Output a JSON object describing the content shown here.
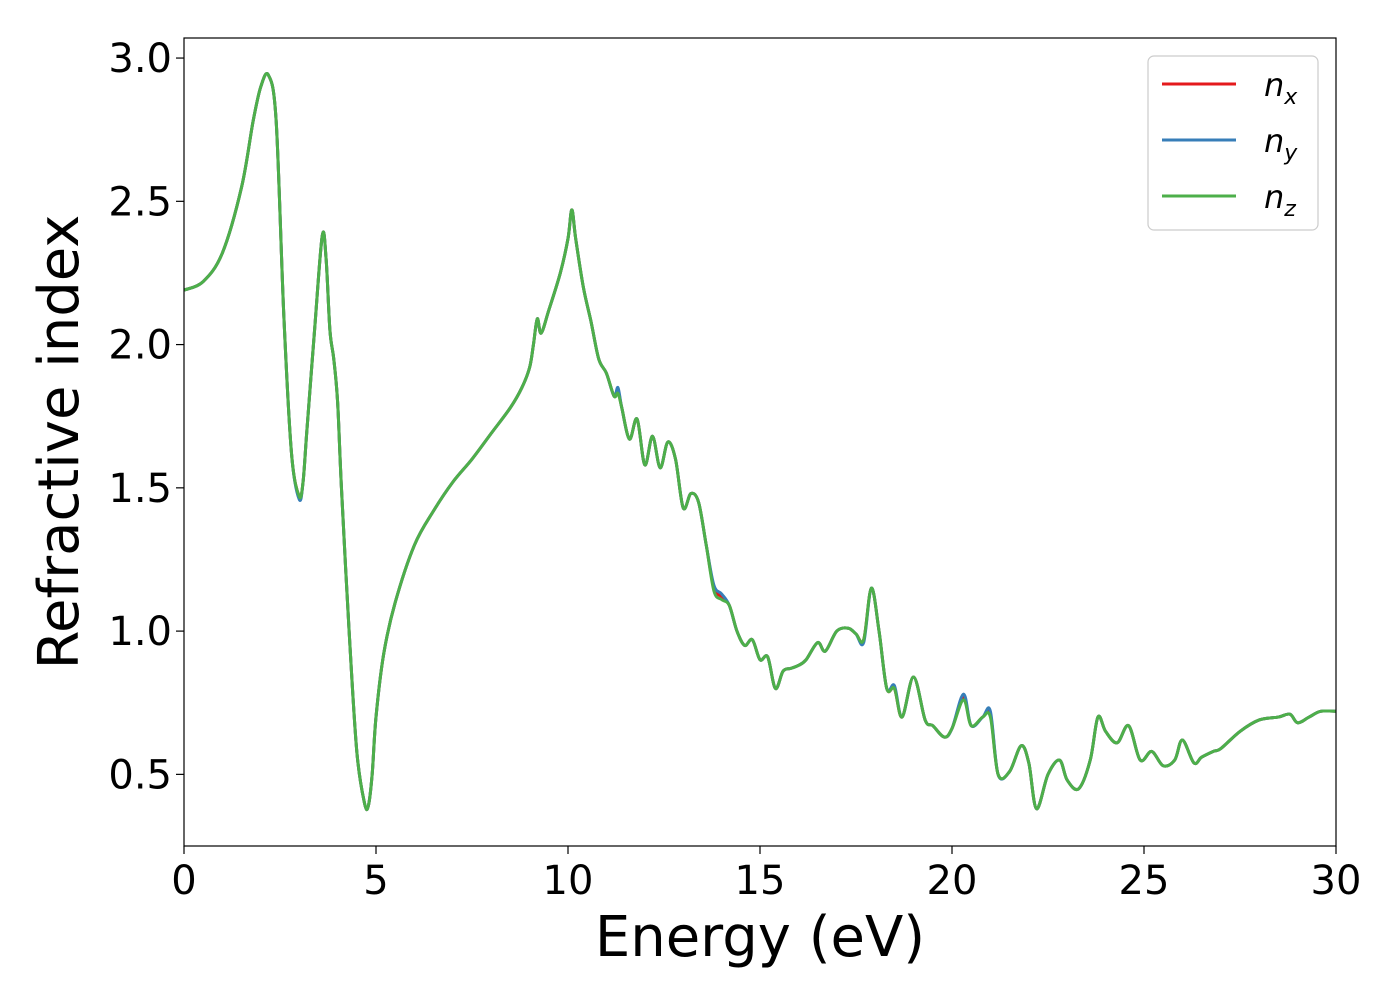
{
  "chart_data": {
    "type": "line",
    "title": "",
    "xlabel": "Energy (eV)",
    "ylabel": "Refractive index",
    "xlim": [
      0,
      30
    ],
    "ylim": [
      0.25,
      3.07
    ],
    "x_ticks": [
      0,
      5,
      10,
      15,
      20,
      25,
      30
    ],
    "x_tick_labels": [
      "0",
      "5",
      "10",
      "15",
      "20",
      "25",
      "30"
    ],
    "y_ticks": [
      0.5,
      1.0,
      1.5,
      2.0,
      2.5,
      3.0
    ],
    "y_tick_labels": [
      "0.5",
      "1.0",
      "1.5",
      "2.0",
      "2.5",
      "3.0"
    ],
    "grid": false,
    "legend_position": "top-right",
    "legend": [
      {
        "base": "n",
        "sub": "x",
        "color": "#e41a1c"
      },
      {
        "base": "n",
        "sub": "y",
        "color": "#377eb8"
      },
      {
        "base": "n",
        "sub": "z",
        "color": "#4daf4a"
      }
    ],
    "x": [
      0,
      0.5,
      1.0,
      1.5,
      1.8,
      2.0,
      2.2,
      2.4,
      2.6,
      2.8,
      3.0,
      3.1,
      3.2,
      3.4,
      3.6,
      3.7,
      3.8,
      3.9,
      4.0,
      4.1,
      4.3,
      4.5,
      4.7,
      4.8,
      4.9,
      5.0,
      5.2,
      5.5,
      6.0,
      6.5,
      7.0,
      7.5,
      8.0,
      8.5,
      8.8,
      9.0,
      9.1,
      9.2,
      9.3,
      9.5,
      9.8,
      10.0,
      10.1,
      10.2,
      10.4,
      10.6,
      10.8,
      11.0,
      11.2,
      11.3,
      11.4,
      11.6,
      11.8,
      12.0,
      12.2,
      12.4,
      12.6,
      12.8,
      13.0,
      13.2,
      13.4,
      13.6,
      13.8,
      14.0,
      14.2,
      14.4,
      14.6,
      14.8,
      15.0,
      15.2,
      15.4,
      15.6,
      15.8,
      16.0,
      16.2,
      16.5,
      16.7,
      17.0,
      17.3,
      17.5,
      17.7,
      17.9,
      18.1,
      18.3,
      18.5,
      18.7,
      19.0,
      19.3,
      19.5,
      19.8,
      20.0,
      20.3,
      20.5,
      20.8,
      21.0,
      21.2,
      21.5,
      21.8,
      22.0,
      22.2,
      22.5,
      22.8,
      23.0,
      23.3,
      23.6,
      23.8,
      24.0,
      24.3,
      24.6,
      24.9,
      25.2,
      25.5,
      25.8,
      26.0,
      26.3,
      26.5,
      26.8,
      27.0,
      27.5,
      28.0,
      28.5,
      28.8,
      29.0,
      29.3,
      29.6,
      30.0
    ],
    "series": [
      {
        "name": "n_x",
        "color": "#e41a1c",
        "values": [
          2.19,
          2.22,
          2.32,
          2.55,
          2.78,
          2.9,
          2.94,
          2.78,
          2.1,
          1.62,
          1.47,
          1.52,
          1.7,
          2.05,
          2.38,
          2.3,
          2.05,
          1.95,
          1.8,
          1.5,
          1.0,
          0.58,
          0.4,
          0.39,
          0.5,
          0.7,
          0.92,
          1.1,
          1.3,
          1.42,
          1.52,
          1.6,
          1.69,
          1.78,
          1.85,
          1.92,
          2.0,
          2.09,
          2.04,
          2.12,
          2.25,
          2.37,
          2.47,
          2.37,
          2.2,
          2.08,
          1.95,
          1.9,
          1.82,
          1.84,
          1.78,
          1.67,
          1.74,
          1.58,
          1.68,
          1.57,
          1.66,
          1.6,
          1.43,
          1.48,
          1.45,
          1.3,
          1.15,
          1.12,
          1.09,
          1.0,
          0.95,
          0.97,
          0.9,
          0.91,
          0.8,
          0.86,
          0.87,
          0.88,
          0.9,
          0.96,
          0.93,
          1.0,
          1.01,
          0.99,
          0.97,
          1.15,
          1.0,
          0.8,
          0.8,
          0.7,
          0.84,
          0.69,
          0.67,
          0.63,
          0.66,
          0.77,
          0.67,
          0.7,
          0.71,
          0.5,
          0.51,
          0.6,
          0.54,
          0.38,
          0.5,
          0.55,
          0.48,
          0.45,
          0.55,
          0.7,
          0.65,
          0.61,
          0.67,
          0.55,
          0.58,
          0.53,
          0.55,
          0.62,
          0.54,
          0.56,
          0.58,
          0.59,
          0.65,
          0.69,
          0.7,
          0.71,
          0.68,
          0.7,
          0.72,
          0.72
        ]
      },
      {
        "name": "n_y",
        "color": "#377eb8",
        "values": [
          2.19,
          2.22,
          2.32,
          2.55,
          2.78,
          2.9,
          2.94,
          2.78,
          2.1,
          1.62,
          1.46,
          1.52,
          1.7,
          2.05,
          2.38,
          2.3,
          2.05,
          1.95,
          1.8,
          1.5,
          1.0,
          0.58,
          0.4,
          0.39,
          0.5,
          0.7,
          0.92,
          1.1,
          1.3,
          1.42,
          1.52,
          1.6,
          1.69,
          1.78,
          1.85,
          1.92,
          2.0,
          2.09,
          2.04,
          2.12,
          2.25,
          2.37,
          2.47,
          2.37,
          2.2,
          2.08,
          1.95,
          1.9,
          1.82,
          1.85,
          1.78,
          1.67,
          1.74,
          1.58,
          1.68,
          1.57,
          1.66,
          1.6,
          1.43,
          1.48,
          1.45,
          1.3,
          1.16,
          1.13,
          1.09,
          1.0,
          0.95,
          0.97,
          0.9,
          0.91,
          0.8,
          0.86,
          0.87,
          0.88,
          0.9,
          0.96,
          0.93,
          1.0,
          1.01,
          0.99,
          0.96,
          1.15,
          1.0,
          0.8,
          0.81,
          0.7,
          0.84,
          0.69,
          0.67,
          0.63,
          0.66,
          0.78,
          0.67,
          0.7,
          0.72,
          0.5,
          0.51,
          0.6,
          0.54,
          0.38,
          0.5,
          0.55,
          0.48,
          0.45,
          0.55,
          0.7,
          0.65,
          0.61,
          0.67,
          0.55,
          0.58,
          0.53,
          0.55,
          0.62,
          0.54,
          0.56,
          0.58,
          0.59,
          0.65,
          0.69,
          0.7,
          0.71,
          0.68,
          0.7,
          0.72,
          0.72
        ]
      },
      {
        "name": "n_z",
        "color": "#4daf4a",
        "values": [
          2.19,
          2.22,
          2.32,
          2.55,
          2.78,
          2.9,
          2.94,
          2.78,
          2.1,
          1.62,
          1.47,
          1.52,
          1.7,
          2.05,
          2.38,
          2.3,
          2.05,
          1.95,
          1.8,
          1.5,
          1.0,
          0.58,
          0.4,
          0.39,
          0.5,
          0.7,
          0.92,
          1.1,
          1.3,
          1.42,
          1.52,
          1.6,
          1.69,
          1.78,
          1.85,
          1.92,
          2.0,
          2.09,
          2.04,
          2.12,
          2.25,
          2.37,
          2.47,
          2.37,
          2.2,
          2.08,
          1.95,
          1.9,
          1.82,
          1.83,
          1.78,
          1.67,
          1.74,
          1.58,
          1.68,
          1.57,
          1.66,
          1.6,
          1.43,
          1.48,
          1.45,
          1.3,
          1.14,
          1.11,
          1.09,
          1.0,
          0.95,
          0.97,
          0.9,
          0.91,
          0.8,
          0.86,
          0.87,
          0.88,
          0.9,
          0.96,
          0.93,
          1.0,
          1.01,
          0.99,
          0.97,
          1.15,
          1.0,
          0.8,
          0.8,
          0.7,
          0.84,
          0.69,
          0.67,
          0.63,
          0.66,
          0.76,
          0.67,
          0.7,
          0.7,
          0.5,
          0.51,
          0.6,
          0.54,
          0.38,
          0.5,
          0.55,
          0.48,
          0.45,
          0.55,
          0.7,
          0.65,
          0.61,
          0.67,
          0.55,
          0.58,
          0.53,
          0.55,
          0.62,
          0.54,
          0.56,
          0.58,
          0.59,
          0.65,
          0.69,
          0.7,
          0.71,
          0.68,
          0.7,
          0.72,
          0.72
        ]
      }
    ]
  }
}
